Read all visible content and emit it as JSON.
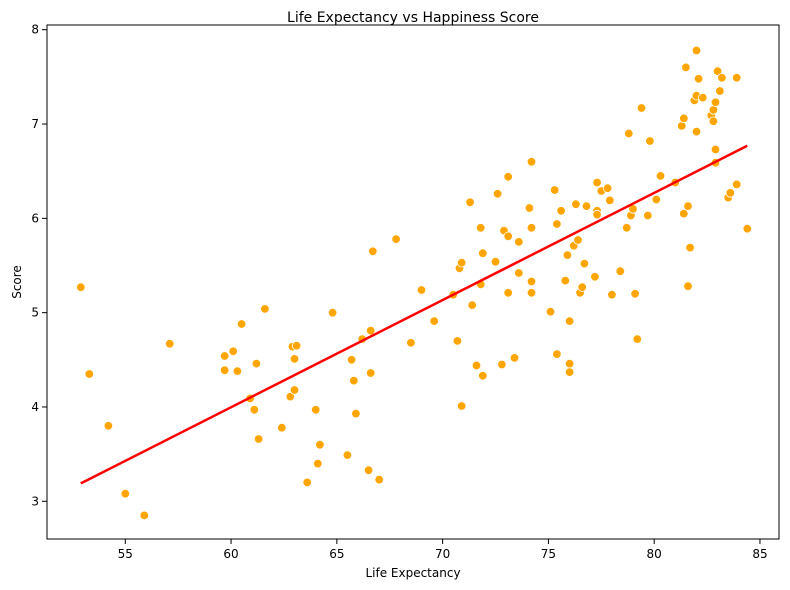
{
  "chart_data": {
    "type": "scatter",
    "title": "Life Expectancy vs Happiness Score",
    "xlabel": "Life Expectancy",
    "ylabel": "Score",
    "xlim": [
      51.3,
      85.9
    ],
    "ylim": [
      2.6,
      8.05
    ],
    "xticks": [
      "55",
      "60",
      "65",
      "70",
      "75",
      "80",
      "85"
    ],
    "yticks": [
      "3",
      "4",
      "5",
      "6",
      "7",
      "8"
    ],
    "grid": false,
    "point_color": "#FFA500",
    "line_color": "#FF0000",
    "regression_line": {
      "x": [
        52.9,
        84.4
      ],
      "y": [
        3.19,
        6.77
      ]
    },
    "points": [
      [
        52.9,
        5.27
      ],
      [
        53.3,
        4.35
      ],
      [
        54.2,
        3.8
      ],
      [
        55.0,
        3.08
      ],
      [
        55.9,
        2.85
      ],
      [
        57.1,
        4.67
      ],
      [
        59.7,
        4.54
      ],
      [
        59.7,
        4.39
      ],
      [
        60.1,
        4.59
      ],
      [
        60.3,
        4.38
      ],
      [
        60.5,
        4.88
      ],
      [
        60.9,
        4.09
      ],
      [
        61.1,
        3.97
      ],
      [
        61.2,
        4.46
      ],
      [
        61.3,
        3.66
      ],
      [
        61.6,
        5.04
      ],
      [
        62.4,
        3.78
      ],
      [
        62.8,
        4.11
      ],
      [
        62.9,
        4.64
      ],
      [
        63.0,
        4.51
      ],
      [
        63.0,
        4.18
      ],
      [
        63.1,
        4.65
      ],
      [
        63.6,
        3.2
      ],
      [
        64.0,
        3.97
      ],
      [
        64.1,
        3.4
      ],
      [
        64.2,
        3.6
      ],
      [
        64.8,
        5.0
      ],
      [
        65.5,
        3.49
      ],
      [
        65.7,
        4.5
      ],
      [
        65.8,
        4.28
      ],
      [
        65.9,
        3.93
      ],
      [
        66.2,
        4.72
      ],
      [
        66.5,
        3.33
      ],
      [
        66.6,
        4.36
      ],
      [
        66.6,
        4.81
      ],
      [
        66.7,
        5.65
      ],
      [
        67.0,
        3.23
      ],
      [
        67.8,
        5.78
      ],
      [
        68.5,
        4.68
      ],
      [
        69.0,
        5.24
      ],
      [
        69.6,
        4.91
      ],
      [
        70.5,
        5.19
      ],
      [
        70.7,
        4.7
      ],
      [
        70.8,
        5.47
      ],
      [
        70.9,
        5.53
      ],
      [
        70.9,
        4.01
      ],
      [
        71.3,
        6.17
      ],
      [
        71.4,
        5.08
      ],
      [
        71.6,
        4.44
      ],
      [
        71.8,
        5.9
      ],
      [
        71.8,
        5.3
      ],
      [
        71.9,
        4.33
      ],
      [
        71.9,
        5.63
      ],
      [
        72.5,
        5.54
      ],
      [
        72.6,
        6.26
      ],
      [
        72.8,
        4.45
      ],
      [
        72.9,
        5.87
      ],
      [
        73.1,
        6.44
      ],
      [
        73.1,
        5.81
      ],
      [
        73.1,
        5.21
      ],
      [
        73.4,
        4.52
      ],
      [
        73.6,
        5.75
      ],
      [
        73.6,
        5.42
      ],
      [
        74.1,
        6.11
      ],
      [
        74.2,
        6.6
      ],
      [
        74.2,
        5.9
      ],
      [
        74.2,
        5.33
      ],
      [
        74.2,
        5.21
      ],
      [
        75.1,
        5.01
      ],
      [
        75.3,
        6.3
      ],
      [
        75.4,
        5.94
      ],
      [
        75.4,
        4.56
      ],
      [
        75.6,
        6.08
      ],
      [
        75.8,
        5.34
      ],
      [
        75.9,
        5.61
      ],
      [
        76.0,
        4.46
      ],
      [
        76.0,
        4.37
      ],
      [
        76.0,
        4.91
      ],
      [
        76.2,
        5.71
      ],
      [
        76.3,
        6.15
      ],
      [
        76.4,
        5.77
      ],
      [
        76.5,
        5.21
      ],
      [
        76.6,
        5.27
      ],
      [
        76.7,
        5.52
      ],
      [
        76.8,
        6.13
      ],
      [
        77.2,
        5.38
      ],
      [
        77.3,
        6.38
      ],
      [
        77.3,
        6.08
      ],
      [
        77.3,
        6.04
      ],
      [
        77.5,
        6.29
      ],
      [
        77.8,
        6.32
      ],
      [
        77.9,
        6.19
      ],
      [
        78.0,
        5.19
      ],
      [
        78.4,
        5.44
      ],
      [
        78.7,
        5.9
      ],
      [
        78.8,
        6.9
      ],
      [
        78.9,
        6.03
      ],
      [
        79.0,
        6.1
      ],
      [
        79.1,
        5.2
      ],
      [
        79.2,
        4.72
      ],
      [
        79.4,
        7.17
      ],
      [
        79.7,
        6.03
      ],
      [
        79.8,
        6.82
      ],
      [
        80.1,
        6.2
      ],
      [
        80.3,
        6.45
      ],
      [
        81.0,
        6.38
      ],
      [
        81.3,
        6.98
      ],
      [
        81.4,
        7.06
      ],
      [
        81.4,
        6.05
      ],
      [
        81.5,
        7.6
      ],
      [
        81.6,
        6.13
      ],
      [
        81.6,
        5.28
      ],
      [
        81.7,
        5.69
      ],
      [
        81.9,
        7.25
      ],
      [
        82.0,
        7.78
      ],
      [
        82.0,
        6.92
      ],
      [
        82.0,
        7.3
      ],
      [
        82.1,
        7.48
      ],
      [
        82.3,
        7.28
      ],
      [
        82.7,
        7.09
      ],
      [
        82.8,
        7.03
      ],
      [
        82.8,
        7.15
      ],
      [
        82.9,
        7.23
      ],
      [
        82.9,
        6.73
      ],
      [
        82.9,
        6.59
      ],
      [
        83.0,
        7.56
      ],
      [
        83.1,
        7.35
      ],
      [
        83.2,
        7.49
      ],
      [
        83.5,
        6.22
      ],
      [
        83.6,
        6.27
      ],
      [
        83.9,
        7.49
      ],
      [
        83.9,
        6.36
      ],
      [
        84.4,
        5.89
      ]
    ]
  }
}
